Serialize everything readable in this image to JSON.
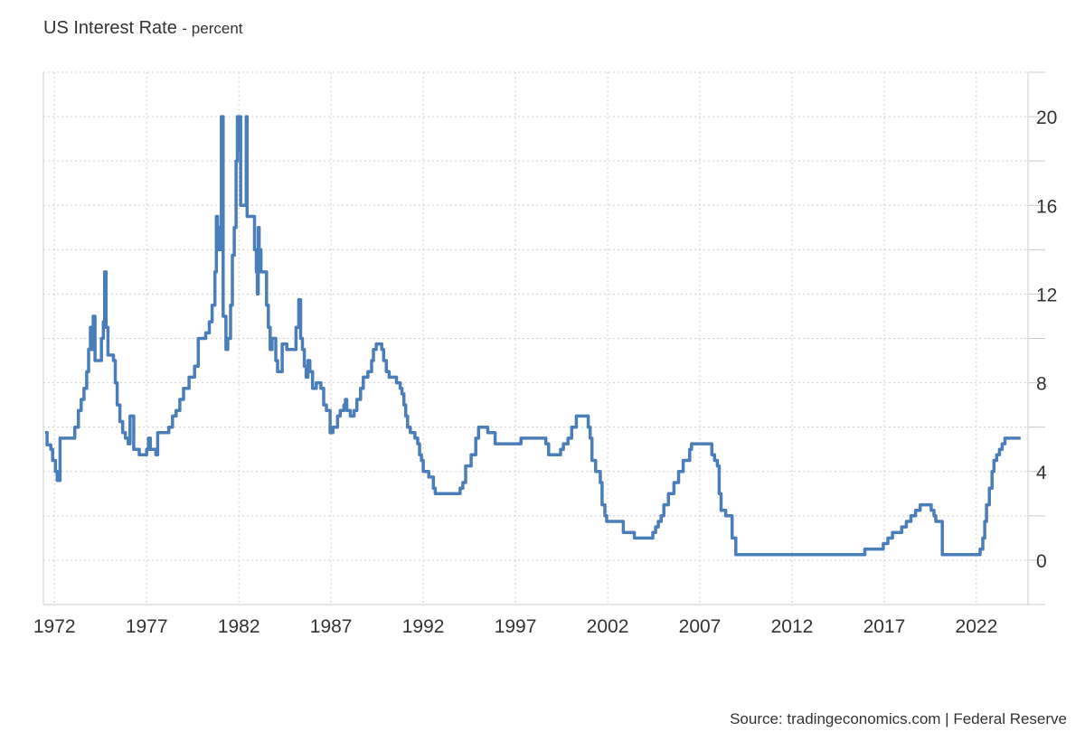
{
  "header": {
    "title": "US Interest Rate",
    "subtitle": "- percent"
  },
  "source": "Source: tradingeconomics.com | Federal Reserve",
  "colors": {
    "line": "#4a7ebb",
    "grid": "#d0d0d0",
    "axis": "#cccccc",
    "text": "#333333"
  },
  "chart_data": {
    "type": "line",
    "title": "US Interest Rate",
    "subtitle": "- percent",
    "xlabel": "",
    "ylabel": "",
    "x_ticks": [
      "1972",
      "1977",
      "1982",
      "1987",
      "1992",
      "1997",
      "2002",
      "2007",
      "2012",
      "2017",
      "2022"
    ],
    "y_ticks": [
      "0",
      "4",
      "8",
      "12",
      "16",
      "20"
    ],
    "xlim": [
      1971.4,
      2024.8
    ],
    "ylim": [
      -2,
      22
    ],
    "grid": true,
    "y_axis_side": "right",
    "series": [
      {
        "step": true,
        "points": [
          [
            1971.5,
            5.75
          ],
          [
            1971.6,
            5.2
          ],
          [
            1971.8,
            5.0
          ],
          [
            1971.9,
            4.5
          ],
          [
            1972.05,
            4.0
          ],
          [
            1972.15,
            3.6
          ],
          [
            1972.3,
            5.5
          ],
          [
            1972.5,
            5.5
          ],
          [
            1972.9,
            5.5
          ],
          [
            1973.1,
            6.0
          ],
          [
            1973.3,
            6.75
          ],
          [
            1973.45,
            7.25
          ],
          [
            1973.6,
            7.75
          ],
          [
            1973.75,
            8.5
          ],
          [
            1973.85,
            9.5
          ],
          [
            1973.95,
            10.5
          ],
          [
            1974.0,
            9.5
          ],
          [
            1974.1,
            11.0
          ],
          [
            1974.2,
            9.0
          ],
          [
            1974.55,
            10.0
          ],
          [
            1974.65,
            10.75
          ],
          [
            1974.72,
            13.0
          ],
          [
            1974.8,
            10.5
          ],
          [
            1974.9,
            9.25
          ],
          [
            1975.2,
            9.0
          ],
          [
            1975.3,
            8.0
          ],
          [
            1975.4,
            7.0
          ],
          [
            1975.55,
            6.25
          ],
          [
            1975.7,
            5.75
          ],
          [
            1975.85,
            5.5
          ],
          [
            1976.0,
            5.25
          ],
          [
            1976.1,
            6.5
          ],
          [
            1976.3,
            5.0
          ],
          [
            1976.6,
            4.75
          ],
          [
            1977.0,
            5.0
          ],
          [
            1977.1,
            5.5
          ],
          [
            1977.2,
            5.0
          ],
          [
            1977.5,
            4.75
          ],
          [
            1977.6,
            5.75
          ],
          [
            1978.0,
            5.75
          ],
          [
            1978.2,
            6.0
          ],
          [
            1978.4,
            6.5
          ],
          [
            1978.6,
            6.75
          ],
          [
            1978.8,
            7.25
          ],
          [
            1979.0,
            7.75
          ],
          [
            1979.3,
            8.25
          ],
          [
            1979.6,
            8.75
          ],
          [
            1979.8,
            10.0
          ],
          [
            1980.2,
            10.25
          ],
          [
            1980.4,
            10.75
          ],
          [
            1980.55,
            11.5
          ],
          [
            1980.7,
            13.0
          ],
          [
            1980.78,
            15.5
          ],
          [
            1980.85,
            14.0
          ],
          [
            1980.9,
            15.0
          ],
          [
            1980.95,
            14.0
          ],
          [
            1981.05,
            20.0
          ],
          [
            1981.15,
            11.0
          ],
          [
            1981.3,
            9.5
          ],
          [
            1981.4,
            10.0
          ],
          [
            1981.55,
            11.5
          ],
          [
            1981.65,
            13.75
          ],
          [
            1981.75,
            15.0
          ],
          [
            1981.85,
            18.0
          ],
          [
            1981.92,
            20.0
          ],
          [
            1981.97,
            18.5
          ],
          [
            1982.02,
            20.0
          ],
          [
            1982.1,
            16.0
          ],
          [
            1982.4,
            20.0
          ],
          [
            1982.45,
            15.5
          ],
          [
            1982.85,
            14.0
          ],
          [
            1982.95,
            13.0
          ],
          [
            1983.0,
            12.0
          ],
          [
            1983.05,
            15.0
          ],
          [
            1983.1,
            13.0
          ],
          [
            1983.15,
            14.0
          ],
          [
            1983.2,
            13.0
          ],
          [
            1983.5,
            11.5
          ],
          [
            1983.6,
            10.5
          ],
          [
            1983.7,
            9.5
          ],
          [
            1983.8,
            10.0
          ],
          [
            1984.0,
            9.0
          ],
          [
            1984.1,
            8.5
          ],
          [
            1984.35,
            9.75
          ],
          [
            1984.6,
            9.5
          ],
          [
            1985.1,
            10.5
          ],
          [
            1985.25,
            11.75
          ],
          [
            1985.35,
            10.0
          ],
          [
            1985.45,
            9.5
          ],
          [
            1985.55,
            8.75
          ],
          [
            1985.65,
            8.25
          ],
          [
            1985.75,
            9.0
          ],
          [
            1985.85,
            8.5
          ],
          [
            1986.0,
            7.75
          ],
          [
            1986.2,
            8.0
          ],
          [
            1986.45,
            7.75
          ],
          [
            1986.6,
            7.0
          ],
          [
            1986.75,
            6.75
          ],
          [
            1986.95,
            5.75
          ],
          [
            1987.1,
            6.0
          ],
          [
            1987.35,
            6.5
          ],
          [
            1987.5,
            6.75
          ],
          [
            1987.7,
            7.0
          ],
          [
            1987.78,
            7.25
          ],
          [
            1987.85,
            6.75
          ],
          [
            1988.05,
            6.5
          ],
          [
            1988.25,
            6.75
          ],
          [
            1988.4,
            7.25
          ],
          [
            1988.6,
            7.75
          ],
          [
            1988.75,
            8.25
          ],
          [
            1989.0,
            8.5
          ],
          [
            1989.2,
            9.0
          ],
          [
            1989.3,
            9.5
          ],
          [
            1989.45,
            9.75
          ],
          [
            1989.75,
            9.5
          ],
          [
            1989.85,
            9.0
          ],
          [
            1990.0,
            8.5
          ],
          [
            1990.15,
            8.25
          ],
          [
            1990.55,
            8.0
          ],
          [
            1990.75,
            7.75
          ],
          [
            1990.85,
            7.5
          ],
          [
            1990.95,
            7.0
          ],
          [
            1991.05,
            6.5
          ],
          [
            1991.15,
            6.0
          ],
          [
            1991.3,
            5.75
          ],
          [
            1991.55,
            5.5
          ],
          [
            1991.7,
            5.25
          ],
          [
            1991.8,
            4.75
          ],
          [
            1991.9,
            4.5
          ],
          [
            1992.0,
            4.0
          ],
          [
            1992.3,
            3.75
          ],
          [
            1992.55,
            3.25
          ],
          [
            1992.65,
            3.0
          ],
          [
            1993.5,
            3.0
          ],
          [
            1994.0,
            3.25
          ],
          [
            1994.15,
            3.5
          ],
          [
            1994.3,
            4.25
          ],
          [
            1994.6,
            4.75
          ],
          [
            1994.85,
            5.5
          ],
          [
            1995.0,
            6.0
          ],
          [
            1995.5,
            5.75
          ],
          [
            1995.9,
            5.25
          ],
          [
            1997.3,
            5.5
          ],
          [
            1998.65,
            5.25
          ],
          [
            1998.8,
            4.75
          ],
          [
            1999.45,
            5.0
          ],
          [
            1999.6,
            5.25
          ],
          [
            1999.85,
            5.5
          ],
          [
            2000.05,
            6.0
          ],
          [
            2000.3,
            6.5
          ],
          [
            2000.95,
            6.0
          ],
          [
            2001.05,
            5.5
          ],
          [
            2001.15,
            4.5
          ],
          [
            2001.35,
            4.0
          ],
          [
            2001.6,
            3.5
          ],
          [
            2001.7,
            2.5
          ],
          [
            2001.85,
            2.0
          ],
          [
            2001.95,
            1.75
          ],
          [
            2002.85,
            1.25
          ],
          [
            2003.45,
            1.0
          ],
          [
            2004.45,
            1.25
          ],
          [
            2004.6,
            1.5
          ],
          [
            2004.75,
            1.75
          ],
          [
            2004.9,
            2.0
          ],
          [
            2005.05,
            2.5
          ],
          [
            2005.3,
            3.0
          ],
          [
            2005.6,
            3.5
          ],
          [
            2005.85,
            4.0
          ],
          [
            2006.1,
            4.5
          ],
          [
            2006.45,
            5.0
          ],
          [
            2006.55,
            5.25
          ],
          [
            2007.65,
            4.75
          ],
          [
            2007.8,
            4.5
          ],
          [
            2007.95,
            4.25
          ],
          [
            2008.05,
            3.0
          ],
          [
            2008.15,
            2.25
          ],
          [
            2008.4,
            2.0
          ],
          [
            2008.75,
            1.0
          ],
          [
            2008.95,
            0.25
          ],
          [
            2015.95,
            0.5
          ],
          [
            2016.95,
            0.75
          ],
          [
            2017.2,
            1.0
          ],
          [
            2017.45,
            1.25
          ],
          [
            2017.95,
            1.5
          ],
          [
            2018.2,
            1.75
          ],
          [
            2018.45,
            2.0
          ],
          [
            2018.7,
            2.25
          ],
          [
            2018.95,
            2.5
          ],
          [
            2019.55,
            2.25
          ],
          [
            2019.7,
            2.0
          ],
          [
            2019.8,
            1.75
          ],
          [
            2020.15,
            0.25
          ],
          [
            2022.2,
            0.5
          ],
          [
            2022.35,
            1.0
          ],
          [
            2022.45,
            1.75
          ],
          [
            2022.55,
            2.5
          ],
          [
            2022.7,
            3.25
          ],
          [
            2022.85,
            4.0
          ],
          [
            2022.95,
            4.5
          ],
          [
            2023.1,
            4.75
          ],
          [
            2023.25,
            5.0
          ],
          [
            2023.4,
            5.25
          ],
          [
            2023.55,
            5.5
          ],
          [
            2024.4,
            5.5
          ]
        ]
      }
    ]
  }
}
